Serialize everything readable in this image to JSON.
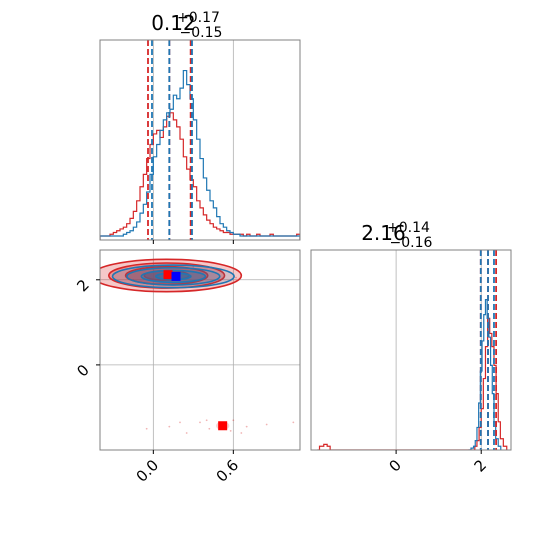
{
  "chart_data": {
    "type": "corner",
    "colors": {
      "blue": "#1f77b4",
      "red": "#d62728",
      "blue_marker": "#0000ff",
      "red_marker": "#ff0000",
      "axis": "#808080",
      "grid": "#b0b0b0"
    },
    "grid": true,
    "params": [
      {
        "title": {
          "value": "0.12",
          "plus": "+0.17",
          "minus": "−0.15"
        },
        "range": [
          -0.4,
          1.1
        ],
        "ticks": [
          {
            "value": 0.0,
            "label": "0.0"
          },
          {
            "value": 0.6,
            "label": "0.6"
          }
        ]
      },
      {
        "title": {
          "value": "2.16",
          "plus": "+0.14",
          "minus": "−0.16"
        },
        "range": [
          -2.0,
          2.7
        ],
        "ticks": [
          {
            "value": 0,
            "label": "0"
          },
          {
            "value": 2,
            "label": "2"
          }
        ]
      }
    ],
    "hist1": {
      "bins_x": [
        -0.4,
        1.1
      ],
      "nbins": 60,
      "ymax": 1.0,
      "blue": {
        "name": "",
        "quantiles": [
          -0.01,
          0.12,
          0.29
        ],
        "counts": [
          0,
          0,
          0,
          0,
          0,
          0,
          0,
          0.01,
          0.02,
          0.03,
          0.05,
          0.08,
          0.13,
          0.18,
          0.25,
          0.35,
          0.45,
          0.52,
          0.6,
          0.66,
          0.7,
          0.72,
          0.8,
          0.78,
          0.84,
          0.94,
          0.86,
          0.78,
          0.66,
          0.55,
          0.44,
          0.33,
          0.26,
          0.2,
          0.16,
          0.11,
          0.07,
          0.05,
          0.03,
          0.02,
          0.01,
          0.01,
          0,
          0,
          0,
          0,
          0,
          0,
          0,
          0,
          0,
          0,
          0,
          0,
          0,
          0,
          0,
          0,
          0,
          0
        ]
      },
      "red": {
        "name": "",
        "quantiles": [
          -0.04,
          0.12,
          0.28
        ],
        "counts": [
          0,
          0,
          0,
          0.01,
          0.02,
          0.03,
          0.04,
          0.05,
          0.07,
          0.1,
          0.14,
          0.2,
          0.28,
          0.35,
          0.44,
          0.52,
          0.58,
          0.6,
          0.56,
          0.62,
          0.68,
          0.7,
          0.66,
          0.62,
          0.55,
          0.45,
          0.38,
          0.32,
          0.28,
          0.2,
          0.16,
          0.12,
          0.09,
          0.07,
          0.05,
          0.04,
          0.03,
          0.02,
          0.02,
          0.01,
          0.01,
          0.01,
          0.01,
          0,
          0.01,
          0,
          0,
          0.01,
          0,
          0,
          0,
          0.01,
          0,
          0,
          0,
          0,
          0,
          0,
          0,
          0.01
        ]
      }
    },
    "hist2": {
      "bins_x": [
        -2.0,
        2.7
      ],
      "ymax": 1.0,
      "blue": {
        "name": "",
        "quantiles": [
          1.99,
          2.16,
          2.3
        ],
        "points": [
          [
            1.7,
            0
          ],
          [
            1.76,
            0.01
          ],
          [
            1.82,
            0.02
          ],
          [
            1.86,
            0.05
          ],
          [
            1.9,
            0.12
          ],
          [
            1.94,
            0.25
          ],
          [
            1.98,
            0.42
          ],
          [
            2.02,
            0.58
          ],
          [
            2.06,
            0.72
          ],
          [
            2.1,
            0.8
          ],
          [
            2.14,
            0.7
          ],
          [
            2.18,
            0.6
          ],
          [
            2.22,
            0.45
          ],
          [
            2.26,
            0.3
          ],
          [
            2.3,
            0.15
          ],
          [
            2.34,
            0.06
          ],
          [
            2.4,
            0.02
          ],
          [
            2.46,
            0
          ]
        ]
      },
      "red": {
        "name": "",
        "quantiles": [
          1.99,
          2.16,
          2.35
        ],
        "points": [
          [
            -1.85,
            0
          ],
          [
            -1.8,
            0.02
          ],
          [
            -1.7,
            0.03
          ],
          [
            -1.62,
            0.02
          ],
          [
            -1.55,
            0
          ],
          [
            1.8,
            0
          ],
          [
            1.85,
            0.02
          ],
          [
            1.9,
            0.05
          ],
          [
            1.95,
            0.12
          ],
          [
            2.0,
            0.22
          ],
          [
            2.05,
            0.38
          ],
          [
            2.1,
            0.55
          ],
          [
            2.15,
            0.7
          ],
          [
            2.2,
            0.62
          ],
          [
            2.25,
            0.55
          ],
          [
            2.3,
            0.45
          ],
          [
            2.35,
            0.3
          ],
          [
            2.4,
            0.15
          ],
          [
            2.45,
            0.06
          ],
          [
            2.52,
            0.02
          ],
          [
            2.6,
            0
          ]
        ]
      }
    },
    "joint": {
      "x_range": [
        -0.4,
        1.1
      ],
      "y_range": [
        -2.0,
        2.7
      ],
      "red_main": {
        "center": [
          0.1,
          2.1
        ],
        "sx": 0.28,
        "sy": 0.19
      },
      "blue_main": {
        "center": [
          0.15,
          2.08
        ],
        "sx": 0.24,
        "sy": 0.14
      },
      "red_secondary": {
        "center": [
          0.52,
          -1.43
        ]
      },
      "markers": [
        {
          "name": "red",
          "x": 0.11,
          "y": 2.12
        },
        {
          "name": "blue",
          "x": 0.17,
          "y": 2.08
        },
        {
          "name": "red-secondary",
          "x": 0.52,
          "y": -1.43
        }
      ]
    }
  }
}
